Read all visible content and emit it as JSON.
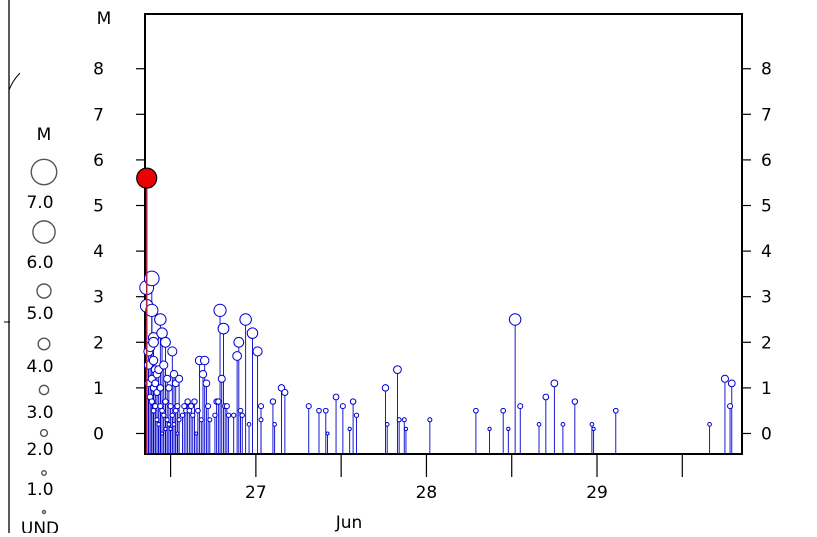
{
  "chart_data": {
    "type": "scatter",
    "style": "stem",
    "x_unit": "days",
    "xlabel": "Jun",
    "ylabel": "M",
    "x_ticks": [
      26.5,
      27,
      27.5,
      28,
      28.5,
      29,
      29.5
    ],
    "x_tick_labels": [
      {
        "x": 27,
        "label": "27"
      },
      {
        "x": 28,
        "label": "28"
      },
      {
        "x": 29,
        "label": "29"
      }
    ],
    "xlim": [
      26.35,
      29.85
    ],
    "ylim": [
      -0.45,
      9.2
    ],
    "y_ticks": [
      0,
      1,
      2,
      3,
      4,
      5,
      6,
      7,
      8
    ],
    "grid": false,
    "colors": {
      "events": "#0000cc",
      "mainshock": "#ee0000",
      "mainshock_stem": "#aa2244",
      "axes": "#000000"
    },
    "mainshock": {
      "x": 26.36,
      "y": 5.6
    },
    "series": [
      {
        "points": [
          [
            26.36,
            3.2
          ],
          [
            26.36,
            2.8
          ],
          [
            26.37,
            1.8
          ],
          [
            26.37,
            1.5
          ],
          [
            26.37,
            1.1
          ],
          [
            26.38,
            1.9
          ],
          [
            26.38,
            0.8
          ],
          [
            26.39,
            3.4
          ],
          [
            26.39,
            2.7
          ],
          [
            26.39,
            1.2
          ],
          [
            26.39,
            0.7
          ],
          [
            26.4,
            2.1
          ],
          [
            26.4,
            2.0
          ],
          [
            26.4,
            1.6
          ],
          [
            26.4,
            1.0
          ],
          [
            26.4,
            0.5
          ],
          [
            26.41,
            1.4
          ],
          [
            26.41,
            1.1
          ],
          [
            26.41,
            0.6
          ],
          [
            26.42,
            1.3
          ],
          [
            26.42,
            0.9
          ],
          [
            26.42,
            0.3
          ],
          [
            26.43,
            1.4
          ],
          [
            26.43,
            0.2
          ],
          [
            26.44,
            2.5
          ],
          [
            26.44,
            1.0
          ],
          [
            26.44,
            0.6
          ],
          [
            26.45,
            2.2
          ],
          [
            26.45,
            0.5
          ],
          [
            26.45,
            0.0
          ],
          [
            26.46,
            1.5
          ],
          [
            26.46,
            0.4
          ],
          [
            26.47,
            2.0
          ],
          [
            26.47,
            0.7
          ],
          [
            26.47,
            0.1
          ],
          [
            26.48,
            1.2
          ],
          [
            26.48,
            0.3
          ],
          [
            26.49,
            1.0
          ],
          [
            26.49,
            0.2
          ],
          [
            26.5,
            0.6
          ],
          [
            26.5,
            0.1
          ],
          [
            26.51,
            1.8
          ],
          [
            26.51,
            0.4
          ],
          [
            26.52,
            1.3
          ],
          [
            26.52,
            0.2
          ],
          [
            26.53,
            1.1
          ],
          [
            26.53,
            0.5
          ],
          [
            26.54,
            0.6
          ],
          [
            26.54,
            0.0
          ],
          [
            26.55,
            1.2
          ],
          [
            26.55,
            0.3
          ],
          [
            26.57,
            0.4
          ],
          [
            26.58,
            0.6
          ],
          [
            26.59,
            0.5
          ],
          [
            26.6,
            0.7
          ],
          [
            26.61,
            0.5
          ],
          [
            26.62,
            0.6
          ],
          [
            26.63,
            0.4
          ],
          [
            26.64,
            0.7
          ],
          [
            26.65,
            0.0
          ],
          [
            26.66,
            0.5
          ],
          [
            26.67,
            1.6
          ],
          [
            26.68,
            0.3
          ],
          [
            26.69,
            1.3
          ],
          [
            26.7,
            1.6
          ],
          [
            26.71,
            1.1
          ],
          [
            26.72,
            0.6
          ],
          [
            26.73,
            0.3
          ],
          [
            26.76,
            0.4
          ],
          [
            26.77,
            0.7
          ],
          [
            26.78,
            0.7
          ],
          [
            26.79,
            2.7
          ],
          [
            26.8,
            1.2
          ],
          [
            26.81,
            2.3
          ],
          [
            26.82,
            0.6
          ],
          [
            26.83,
            0.6
          ],
          [
            26.84,
            0.4
          ],
          [
            26.87,
            0.4
          ],
          [
            26.89,
            1.7
          ],
          [
            26.9,
            2.0
          ],
          [
            26.91,
            0.5
          ],
          [
            26.92,
            0.4
          ],
          [
            26.94,
            2.5
          ],
          [
            26.96,
            0.2
          ],
          [
            26.98,
            2.2
          ],
          [
            27.01,
            1.8
          ],
          [
            27.03,
            0.6
          ],
          [
            27.03,
            0.3
          ],
          [
            27.1,
            0.7
          ],
          [
            27.11,
            0.2
          ],
          [
            27.15,
            1.0
          ],
          [
            27.17,
            0.9
          ],
          [
            27.31,
            0.6
          ],
          [
            27.37,
            0.5
          ],
          [
            27.41,
            0.5
          ],
          [
            27.42,
            0.0
          ],
          [
            27.47,
            0.8
          ],
          [
            27.51,
            0.6
          ],
          [
            27.55,
            0.1
          ],
          [
            27.57,
            0.7
          ],
          [
            27.59,
            0.4
          ],
          [
            27.76,
            1.0
          ],
          [
            27.77,
            0.2
          ],
          [
            27.83,
            1.4
          ],
          [
            27.84,
            0.3
          ],
          [
            27.87,
            0.3
          ],
          [
            27.88,
            0.1
          ],
          [
            28.02,
            0.3
          ],
          [
            28.29,
            0.5
          ],
          [
            28.37,
            0.1
          ],
          [
            28.45,
            0.5
          ],
          [
            28.48,
            0.1
          ],
          [
            28.52,
            2.5
          ],
          [
            28.55,
            0.6
          ],
          [
            28.66,
            0.2
          ],
          [
            28.7,
            0.8
          ],
          [
            28.75,
            1.1
          ],
          [
            28.8,
            0.2
          ],
          [
            28.87,
            0.7
          ],
          [
            28.97,
            0.2
          ],
          [
            28.98,
            0.1
          ],
          [
            29.11,
            0.5
          ],
          [
            29.66,
            0.2
          ],
          [
            29.75,
            1.2
          ],
          [
            29.78,
            0.6
          ],
          [
            29.79,
            1.1
          ]
        ]
      }
    ]
  },
  "legend": {
    "title": "M",
    "items": [
      {
        "label": "7.0",
        "mag": 7
      },
      {
        "label": "6.0",
        "mag": 6
      },
      {
        "label": "5.0",
        "mag": 5
      },
      {
        "label": "4.0",
        "mag": 4
      },
      {
        "label": "3.0",
        "mag": 3
      },
      {
        "label": "2.0",
        "mag": 2
      },
      {
        "label": "1.0",
        "mag": 1
      },
      {
        "label": "UND",
        "mag": 0
      }
    ]
  }
}
